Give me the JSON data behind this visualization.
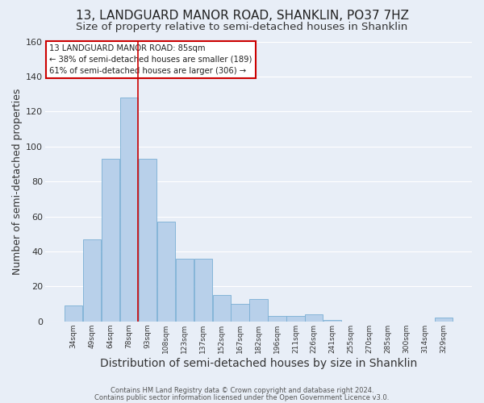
{
  "title": "13, LANDGUARD MANOR ROAD, SHANKLIN, PO37 7HZ",
  "subtitle": "Size of property relative to semi-detached houses in Shanklin",
  "xlabel": "Distribution of semi-detached houses by size in Shanklin",
  "ylabel": "Number of semi-detached properties",
  "annotation_title": "13 LANDGUARD MANOR ROAD: 85sqm",
  "annotation_line1": "← 38% of semi-detached houses are smaller (189)",
  "annotation_line2": "61% of semi-detached houses are larger (306) →",
  "footer1": "Contains HM Land Registry data © Crown copyright and database right 2024.",
  "footer2": "Contains public sector information licensed under the Open Government Licence v3.0.",
  "bin_labels": [
    "34sqm",
    "49sqm",
    "64sqm",
    "78sqm",
    "93sqm",
    "108sqm",
    "123sqm",
    "137sqm",
    "152sqm",
    "167sqm",
    "182sqm",
    "196sqm",
    "211sqm",
    "226sqm",
    "241sqm",
    "255sqm",
    "270sqm",
    "285sqm",
    "300sqm",
    "314sqm",
    "329sqm"
  ],
  "bar_values": [
    9,
    47,
    93,
    128,
    93,
    57,
    36,
    36,
    15,
    10,
    13,
    3,
    3,
    4,
    1,
    0,
    0,
    0,
    0,
    0,
    2
  ],
  "bar_color": "#b8d0ea",
  "bar_edge_color": "#7aafd4",
  "ylim": [
    0,
    160
  ],
  "yticks": [
    0,
    20,
    40,
    60,
    80,
    100,
    120,
    140,
    160
  ],
  "background_color": "#e8eef7",
  "grid_color": "#ffffff",
  "title_fontsize": 11,
  "subtitle_fontsize": 9.5,
  "xlabel_fontsize": 10,
  "ylabel_fontsize": 9,
  "annotation_box_color": "#ffffff",
  "annotation_box_edge": "#cc0000",
  "red_line_x": 3.5
}
